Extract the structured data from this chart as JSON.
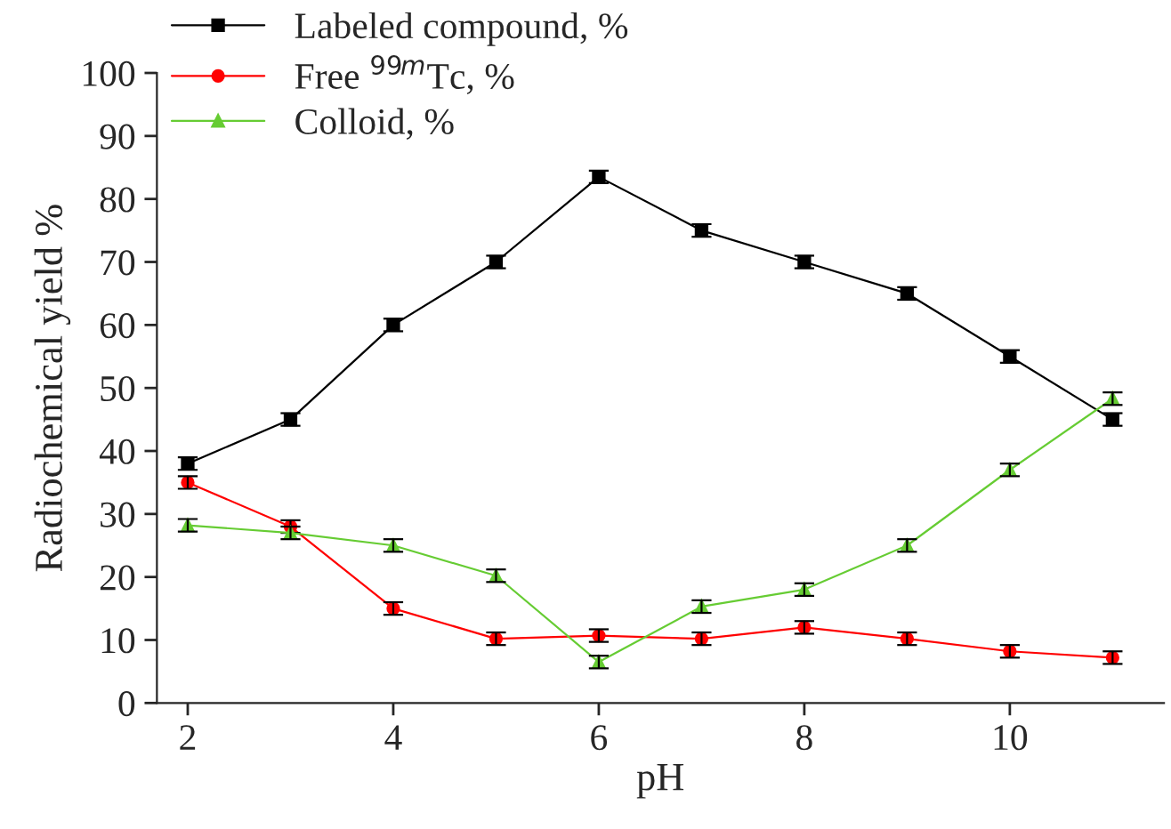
{
  "chart_data": {
    "type": "line",
    "xlabel": "pH",
    "ylabel": "Radiochemical yield %",
    "x": [
      2,
      3,
      4,
      5,
      6,
      7,
      8,
      9,
      10,
      11
    ],
    "xlim": [
      1.7,
      11.5
    ],
    "xticks": [
      2,
      4,
      6,
      8,
      10
    ],
    "ylim": [
      0,
      100
    ],
    "yticks": [
      0,
      10,
      20,
      30,
      40,
      50,
      60,
      70,
      80,
      90,
      100
    ],
    "grid": false,
    "legend": "top left",
    "series": [
      {
        "name": "Labeled compound, %",
        "color": "#000000",
        "marker": "square",
        "values": [
          38,
          45,
          60,
          70,
          83.5,
          75,
          70,
          65,
          55,
          45
        ],
        "errors": [
          1,
          1,
          1,
          1,
          1,
          1,
          1,
          1,
          1,
          1
        ]
      },
      {
        "name": "Free $^{99m}$Tc, %",
        "color": "#ff0000",
        "marker": "circle",
        "values": [
          35,
          28,
          15,
          10.2,
          10.7,
          10.2,
          12,
          10.2,
          8.2,
          7.2
        ],
        "errors": [
          1,
          1,
          1,
          1,
          1,
          1,
          1,
          1,
          1,
          1
        ]
      },
      {
        "name": "Colloid, %",
        "color": "#66cc33",
        "marker": "triangle",
        "values": [
          28.2,
          27,
          25,
          20.2,
          6.5,
          15.3,
          18,
          25,
          37,
          48.3
        ],
        "errors": [
          1,
          1,
          1,
          1,
          1,
          1,
          1,
          1,
          1,
          1
        ]
      }
    ]
  }
}
